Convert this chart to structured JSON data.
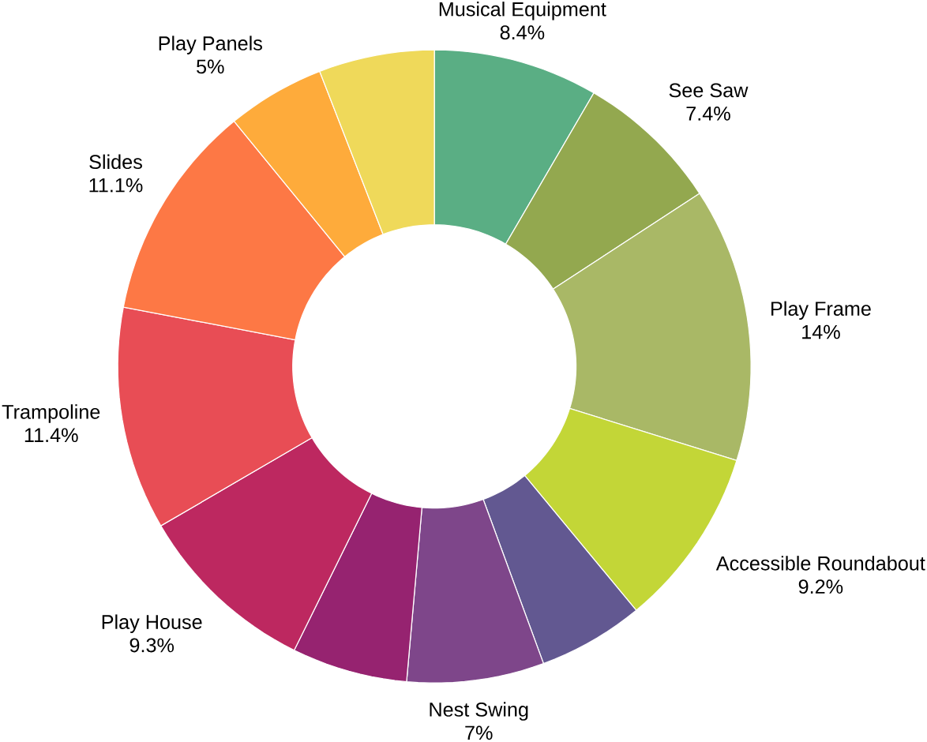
{
  "chart_data": {
    "type": "donut",
    "categories": [
      "Musical Equipment",
      "See Saw",
      "Play Frame",
      "Accessible Roundabout",
      null,
      "Nest Swing",
      null,
      "Play House",
      "Trampoline",
      "Slides",
      "Play Panels",
      null
    ],
    "values": [
      8.4,
      7.4,
      14,
      9.2,
      5.4,
      7,
      5.9,
      9.3,
      11.4,
      11.1,
      5,
      5.9
    ],
    "value_labels": [
      "8.4%",
      "7.4%",
      "14%",
      "9.2%",
      null,
      "7%",
      null,
      "9.3%",
      "11.4%",
      "11.1%",
      "5%",
      null
    ],
    "colors": [
      "#5aae84",
      "#93a84f",
      "#a9b866",
      "#c3d637",
      "#625891",
      "#7e468a",
      "#962370",
      "#bd2860",
      "#e84d55",
      "#fd7845",
      "#feab3b",
      "#efd95a"
    ]
  }
}
